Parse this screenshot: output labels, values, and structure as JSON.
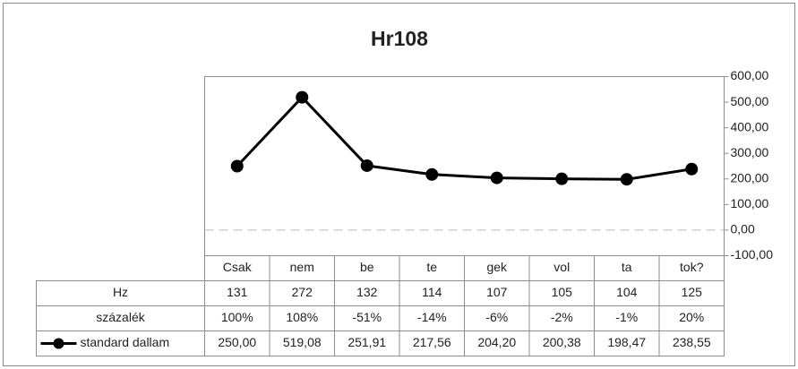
{
  "chart_data": {
    "type": "line",
    "title": "Hr108",
    "categories": [
      "Csak",
      "nem",
      "be",
      "te",
      "gek",
      "vol",
      "ta",
      "tok?"
    ],
    "series": [
      {
        "name": "standard dallam",
        "color": "#000000",
        "values": [
          250.0,
          519.08,
          251.91,
          217.56,
          204.2,
          200.38,
          198.47,
          238.55
        ],
        "value_labels": [
          "250,00",
          "519,08",
          "251,91",
          "217,56",
          "204,20",
          "200,38",
          "198,47",
          "238,55"
        ]
      }
    ],
    "table": [
      {
        "name": "Hz",
        "values": [
          131,
          272,
          132,
          114,
          107,
          105,
          104,
          125
        ]
      },
      {
        "name": "százalék",
        "values": [
          "100%",
          "108%",
          "-51%",
          "-14%",
          "-6%",
          "-2%",
          "-1%",
          "20%"
        ]
      }
    ],
    "ylim": [
      -100,
      600
    ],
    "yticks": [
      {
        "value": -100,
        "label": "-100,00"
      },
      {
        "value": 0,
        "label": "0,00"
      },
      {
        "value": 100,
        "label": "100,00"
      },
      {
        "value": 200,
        "label": "200,00"
      },
      {
        "value": 300,
        "label": "300,00"
      },
      {
        "value": 400,
        "label": "400,00"
      },
      {
        "value": 500,
        "label": "500,00"
      },
      {
        "value": 600,
        "label": "600,00"
      }
    ],
    "yaxis_position": "right"
  }
}
